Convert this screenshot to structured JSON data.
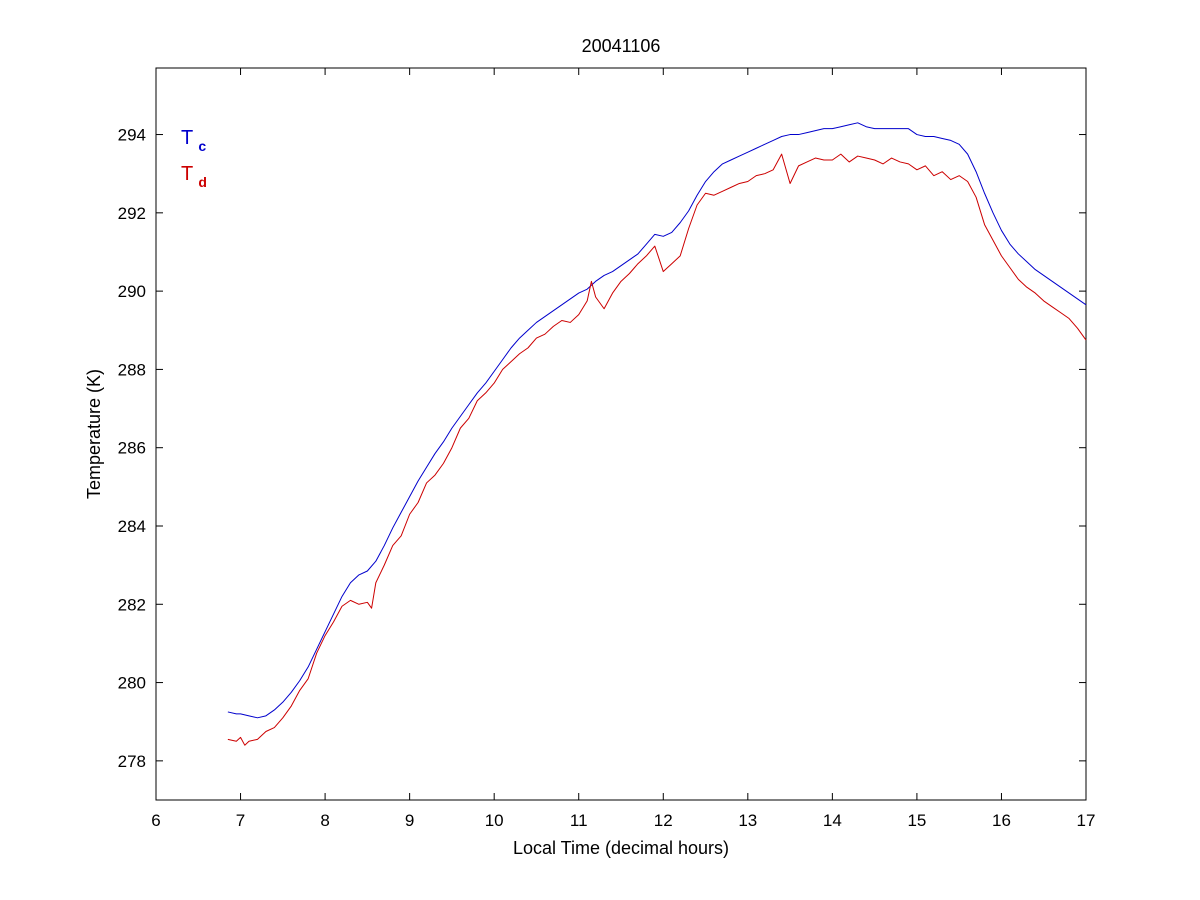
{
  "chart_data": {
    "type": "line",
    "title": "20041106",
    "xlabel": "Local Time (decimal hours)",
    "ylabel": "Temperature (K)",
    "xlim": [
      6,
      17
    ],
    "ylim": [
      277,
      295.7
    ],
    "xticks": [
      6,
      7,
      8,
      9,
      10,
      11,
      12,
      13,
      14,
      15,
      16,
      17
    ],
    "yticks": [
      278,
      280,
      282,
      284,
      286,
      288,
      290,
      292,
      294
    ],
    "grid": false,
    "legend_placement": "top-left",
    "series": [
      {
        "name": "T",
        "name_subscript": "c",
        "color": "#0000cc",
        "points": [
          [
            6.85,
            279.25
          ],
          [
            6.95,
            279.2
          ],
          [
            7.0,
            279.2
          ],
          [
            7.1,
            279.15
          ],
          [
            7.2,
            279.1
          ],
          [
            7.3,
            279.15
          ],
          [
            7.4,
            279.3
          ],
          [
            7.5,
            279.5
          ],
          [
            7.6,
            279.75
          ],
          [
            7.7,
            280.05
          ],
          [
            7.8,
            280.4
          ],
          [
            7.9,
            280.85
          ],
          [
            8.0,
            281.3
          ],
          [
            8.1,
            281.75
          ],
          [
            8.2,
            282.2
          ],
          [
            8.3,
            282.55
          ],
          [
            8.4,
            282.75
          ],
          [
            8.5,
            282.85
          ],
          [
            8.6,
            283.1
          ],
          [
            8.7,
            283.5
          ],
          [
            8.8,
            283.95
          ],
          [
            8.9,
            284.35
          ],
          [
            9.0,
            284.75
          ],
          [
            9.1,
            285.15
          ],
          [
            9.2,
            285.5
          ],
          [
            9.3,
            285.85
          ],
          [
            9.4,
            286.15
          ],
          [
            9.5,
            286.5
          ],
          [
            9.6,
            286.8
          ],
          [
            9.7,
            287.1
          ],
          [
            9.8,
            287.4
          ],
          [
            9.9,
            287.65
          ],
          [
            10.0,
            287.95
          ],
          [
            10.1,
            288.25
          ],
          [
            10.2,
            288.55
          ],
          [
            10.3,
            288.8
          ],
          [
            10.4,
            289.0
          ],
          [
            10.5,
            289.2
          ],
          [
            10.6,
            289.35
          ],
          [
            10.7,
            289.5
          ],
          [
            10.8,
            289.65
          ],
          [
            10.9,
            289.8
          ],
          [
            11.0,
            289.95
          ],
          [
            11.1,
            290.05
          ],
          [
            11.2,
            290.25
          ],
          [
            11.3,
            290.4
          ],
          [
            11.4,
            290.5
          ],
          [
            11.5,
            290.65
          ],
          [
            11.6,
            290.8
          ],
          [
            11.7,
            290.95
          ],
          [
            11.8,
            291.2
          ],
          [
            11.9,
            291.45
          ],
          [
            12.0,
            291.4
          ],
          [
            12.1,
            291.5
          ],
          [
            12.2,
            291.75
          ],
          [
            12.3,
            292.05
          ],
          [
            12.4,
            292.45
          ],
          [
            12.5,
            292.8
          ],
          [
            12.6,
            293.05
          ],
          [
            12.7,
            293.25
          ],
          [
            12.8,
            293.35
          ],
          [
            12.9,
            293.45
          ],
          [
            13.0,
            293.55
          ],
          [
            13.1,
            293.65
          ],
          [
            13.2,
            293.75
          ],
          [
            13.3,
            293.85
          ],
          [
            13.4,
            293.95
          ],
          [
            13.5,
            294.0
          ],
          [
            13.6,
            294.0
          ],
          [
            13.7,
            294.05
          ],
          [
            13.8,
            294.1
          ],
          [
            13.9,
            294.15
          ],
          [
            14.0,
            294.15
          ],
          [
            14.1,
            294.2
          ],
          [
            14.2,
            294.25
          ],
          [
            14.3,
            294.3
          ],
          [
            14.4,
            294.2
          ],
          [
            14.5,
            294.15
          ],
          [
            14.6,
            294.15
          ],
          [
            14.7,
            294.15
          ],
          [
            14.8,
            294.15
          ],
          [
            14.9,
            294.15
          ],
          [
            15.0,
            294.0
          ],
          [
            15.1,
            293.95
          ],
          [
            15.2,
            293.95
          ],
          [
            15.3,
            293.9
          ],
          [
            15.4,
            293.85
          ],
          [
            15.5,
            293.75
          ],
          [
            15.6,
            293.5
          ],
          [
            15.7,
            293.05
          ],
          [
            15.8,
            292.5
          ],
          [
            15.9,
            292.0
          ],
          [
            16.0,
            291.55
          ],
          [
            16.1,
            291.2
          ],
          [
            16.2,
            290.95
          ],
          [
            16.3,
            290.75
          ],
          [
            16.4,
            290.55
          ],
          [
            16.5,
            290.4
          ],
          [
            16.6,
            290.25
          ],
          [
            16.7,
            290.1
          ],
          [
            16.8,
            289.95
          ],
          [
            16.9,
            289.8
          ],
          [
            17.0,
            289.65
          ]
        ]
      },
      {
        "name": "T",
        "name_subscript": "d",
        "color": "#cc0000",
        "points": [
          [
            6.85,
            278.55
          ],
          [
            6.95,
            278.5
          ],
          [
            7.0,
            278.6
          ],
          [
            7.05,
            278.4
          ],
          [
            7.1,
            278.5
          ],
          [
            7.2,
            278.55
          ],
          [
            7.3,
            278.75
          ],
          [
            7.4,
            278.85
          ],
          [
            7.5,
            279.1
          ],
          [
            7.6,
            279.4
          ],
          [
            7.7,
            279.8
          ],
          [
            7.8,
            280.1
          ],
          [
            7.9,
            280.75
          ],
          [
            8.0,
            281.2
          ],
          [
            8.1,
            281.55
          ],
          [
            8.2,
            281.95
          ],
          [
            8.3,
            282.1
          ],
          [
            8.4,
            282.0
          ],
          [
            8.5,
            282.05
          ],
          [
            8.55,
            281.9
          ],
          [
            8.6,
            282.55
          ],
          [
            8.7,
            283.0
          ],
          [
            8.8,
            283.5
          ],
          [
            8.9,
            283.75
          ],
          [
            9.0,
            284.3
          ],
          [
            9.1,
            284.6
          ],
          [
            9.2,
            285.1
          ],
          [
            9.3,
            285.3
          ],
          [
            9.4,
            285.6
          ],
          [
            9.5,
            286.0
          ],
          [
            9.6,
            286.5
          ],
          [
            9.7,
            286.75
          ],
          [
            9.8,
            287.2
          ],
          [
            9.9,
            287.4
          ],
          [
            10.0,
            287.65
          ],
          [
            10.1,
            288.0
          ],
          [
            10.2,
            288.2
          ],
          [
            10.3,
            288.4
          ],
          [
            10.4,
            288.55
          ],
          [
            10.5,
            288.8
          ],
          [
            10.6,
            288.9
          ],
          [
            10.7,
            289.1
          ],
          [
            10.8,
            289.25
          ],
          [
            10.9,
            289.2
          ],
          [
            11.0,
            289.4
          ],
          [
            11.1,
            289.75
          ],
          [
            11.15,
            290.25
          ],
          [
            11.2,
            289.85
          ],
          [
            11.3,
            289.55
          ],
          [
            11.4,
            289.95
          ],
          [
            11.5,
            290.25
          ],
          [
            11.6,
            290.45
          ],
          [
            11.7,
            290.7
          ],
          [
            11.8,
            290.9
          ],
          [
            11.9,
            291.15
          ],
          [
            12.0,
            290.5
          ],
          [
            12.1,
            290.7
          ],
          [
            12.2,
            290.9
          ],
          [
            12.3,
            291.6
          ],
          [
            12.4,
            292.2
          ],
          [
            12.5,
            292.5
          ],
          [
            12.6,
            292.45
          ],
          [
            12.7,
            292.55
          ],
          [
            12.8,
            292.65
          ],
          [
            12.9,
            292.75
          ],
          [
            13.0,
            292.8
          ],
          [
            13.1,
            292.95
          ],
          [
            13.2,
            293.0
          ],
          [
            13.3,
            293.1
          ],
          [
            13.4,
            293.5
          ],
          [
            13.5,
            292.75
          ],
          [
            13.6,
            293.2
          ],
          [
            13.7,
            293.3
          ],
          [
            13.8,
            293.4
          ],
          [
            13.9,
            293.35
          ],
          [
            14.0,
            293.35
          ],
          [
            14.1,
            293.5
          ],
          [
            14.2,
            293.3
          ],
          [
            14.3,
            293.45
          ],
          [
            14.4,
            293.4
          ],
          [
            14.5,
            293.35
          ],
          [
            14.6,
            293.25
          ],
          [
            14.7,
            293.4
          ],
          [
            14.8,
            293.3
          ],
          [
            14.9,
            293.25
          ],
          [
            15.0,
            293.1
          ],
          [
            15.1,
            293.2
          ],
          [
            15.2,
            292.95
          ],
          [
            15.3,
            293.05
          ],
          [
            15.4,
            292.85
          ],
          [
            15.5,
            292.95
          ],
          [
            15.6,
            292.8
          ],
          [
            15.7,
            292.4
          ],
          [
            15.8,
            291.7
          ],
          [
            15.9,
            291.3
          ],
          [
            16.0,
            290.9
          ],
          [
            16.1,
            290.6
          ],
          [
            16.2,
            290.3
          ],
          [
            16.3,
            290.1
          ],
          [
            16.4,
            289.95
          ],
          [
            16.5,
            289.75
          ],
          [
            16.6,
            289.6
          ],
          [
            16.7,
            289.45
          ],
          [
            16.8,
            289.3
          ],
          [
            16.9,
            289.05
          ],
          [
            17.0,
            288.75
          ]
        ]
      }
    ]
  }
}
